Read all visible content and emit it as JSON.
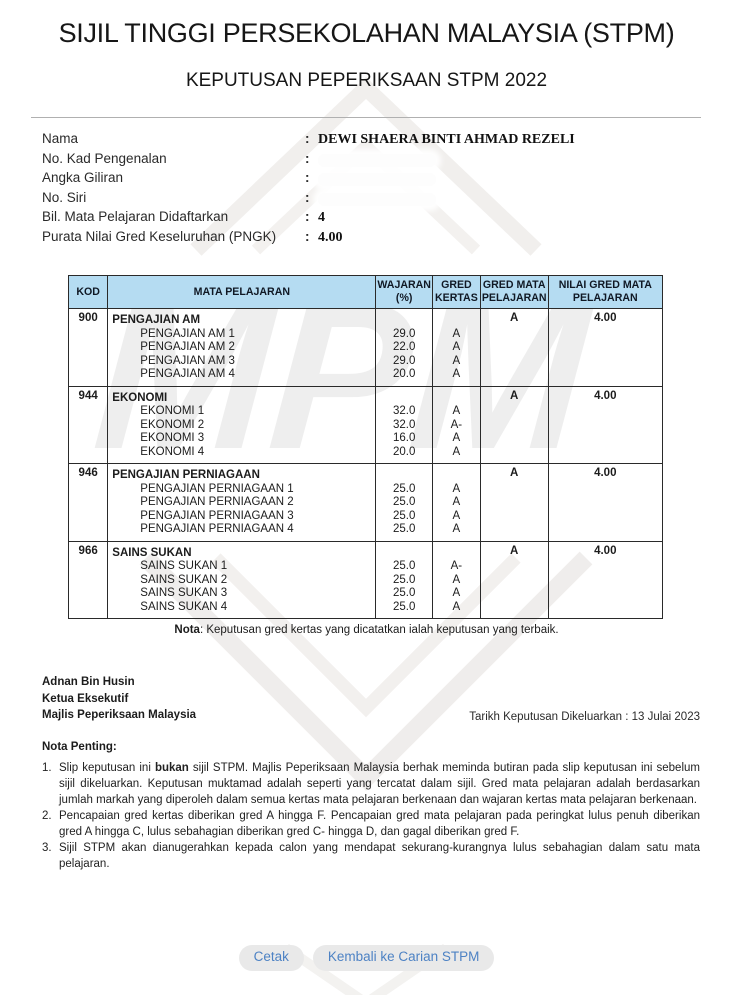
{
  "header": {
    "title": "SIJIL TINGGI PERSEKOLAHAN MALAYSIA (STPM)",
    "subtitle": "KEPUTUSAN PEPERIKSAAN STPM 2022"
  },
  "info": {
    "rows": [
      {
        "label": "Nama",
        "sep": ":",
        "value": "DEWI SHAERA BINTI AHMAD REZELI",
        "redacted": false
      },
      {
        "label": "No. Kad Pengenalan",
        "sep": ":",
        "value": "",
        "redacted": true
      },
      {
        "label": "Angka Giliran",
        "sep": ":",
        "value": "",
        "redacted": true
      },
      {
        "label": "No. Siri",
        "sep": ":",
        "value": "",
        "redacted": true
      },
      {
        "label": "Bil. Mata Pelajaran Didaftarkan",
        "sep": ":",
        "value": "4",
        "redacted": false
      },
      {
        "label": "Purata Nilai Gred Keseluruhan (PNGK)",
        "sep": ":",
        "value": "4.00",
        "redacted": false
      }
    ]
  },
  "table": {
    "headers": [
      "KOD",
      "MATA PELAJARAN",
      "WAJARAN (%)",
      "GRED KERTAS",
      "GRED MATA PELAJARAN",
      "NILAI GRED MATA PELAJARAN"
    ],
    "subjects": [
      {
        "code": "900",
        "name": "PENGAJIAN AM",
        "subject_grade": "A",
        "subject_value": "4.00",
        "papers": [
          {
            "name": "PENGAJIAN AM 1",
            "weight": "29.0",
            "grade": "A"
          },
          {
            "name": "PENGAJIAN AM 2",
            "weight": "22.0",
            "grade": "A"
          },
          {
            "name": "PENGAJIAN AM 3",
            "weight": "29.0",
            "grade": "A"
          },
          {
            "name": "PENGAJIAN AM 4",
            "weight": "20.0",
            "grade": "A"
          }
        ]
      },
      {
        "code": "944",
        "name": "EKONOMI",
        "subject_grade": "A",
        "subject_value": "4.00",
        "papers": [
          {
            "name": "EKONOMI 1",
            "weight": "32.0",
            "grade": "A"
          },
          {
            "name": "EKONOMI 2",
            "weight": "32.0",
            "grade": "A-"
          },
          {
            "name": "EKONOMI 3",
            "weight": "16.0",
            "grade": "A"
          },
          {
            "name": "EKONOMI 4",
            "weight": "20.0",
            "grade": "A"
          }
        ]
      },
      {
        "code": "946",
        "name": "PENGAJIAN PERNIAGAAN",
        "subject_grade": "A",
        "subject_value": "4.00",
        "papers": [
          {
            "name": "PENGAJIAN PERNIAGAAN 1",
            "weight": "25.0",
            "grade": "A"
          },
          {
            "name": "PENGAJIAN PERNIAGAAN 2",
            "weight": "25.0",
            "grade": "A"
          },
          {
            "name": "PENGAJIAN PERNIAGAAN 3",
            "weight": "25.0",
            "grade": "A"
          },
          {
            "name": "PENGAJIAN PERNIAGAAN 4",
            "weight": "25.0",
            "grade": "A"
          }
        ]
      },
      {
        "code": "966",
        "name": "SAINS SUKAN",
        "subject_grade": "A",
        "subject_value": "4.00",
        "papers": [
          {
            "name": "SAINS SUKAN 1",
            "weight": "25.0",
            "grade": "A-"
          },
          {
            "name": "SAINS SUKAN 2",
            "weight": "25.0",
            "grade": "A"
          },
          {
            "name": "SAINS SUKAN 3",
            "weight": "25.0",
            "grade": "A"
          },
          {
            "name": "SAINS SUKAN 4",
            "weight": "25.0",
            "grade": "A"
          }
        ]
      }
    ],
    "note_label": "Nota",
    "note_text": ": Keputusan gred kertas yang dicatatkan ialah keputusan yang terbaik."
  },
  "signature": {
    "name": "Adnan Bin Husin",
    "title": "Ketua Eksekutif",
    "org": "Majlis Peperiksaan Malaysia",
    "date_line": "Tarikh Keputusan Dikeluarkan : 13 Julai 2023"
  },
  "notes": {
    "heading": "Nota Penting:",
    "items": [
      {
        "num": "1.",
        "pre": "Slip keputusan ini ",
        "bold": "bukan",
        "post": " sijil STPM. Majlis Peperiksaan Malaysia berhak meminda butiran pada slip keputusan ini sebelum sijil dikeluarkan. Keputusan muktamad adalah seperti yang tercatat dalam sijil. Gred mata pelajaran adalah berdasarkan jumlah markah yang diperoleh dalam semua kertas mata pelajaran berkenaan dan wajaran kertas mata pelajaran berkenaan."
      },
      {
        "num": "2.",
        "pre": "Pencapaian gred kertas diberikan gred A hingga F. Pencapaian gred mata pelajaran pada peringkat lulus penuh diberikan gred A hingga C, lulus sebahagian diberikan gred C- hingga D, dan gagal diberikan gred F.",
        "bold": "",
        "post": ""
      },
      {
        "num": "3.",
        "pre": "Sijil STPM akan dianugerahkan kepada calon yang mendapat sekurang-kurangnya lulus sebahagian dalam satu mata pelajaran.",
        "bold": "",
        "post": ""
      }
    ]
  },
  "actions": {
    "print_label": "Cetak",
    "back_label": "Kembali ke Carian STPM"
  },
  "watermark": {
    "text": "MPM"
  },
  "colors": {
    "table_header_bg": "#b5dcf2",
    "button_bg": "#e9e9e9",
    "button_text": "#4d82c4"
  }
}
